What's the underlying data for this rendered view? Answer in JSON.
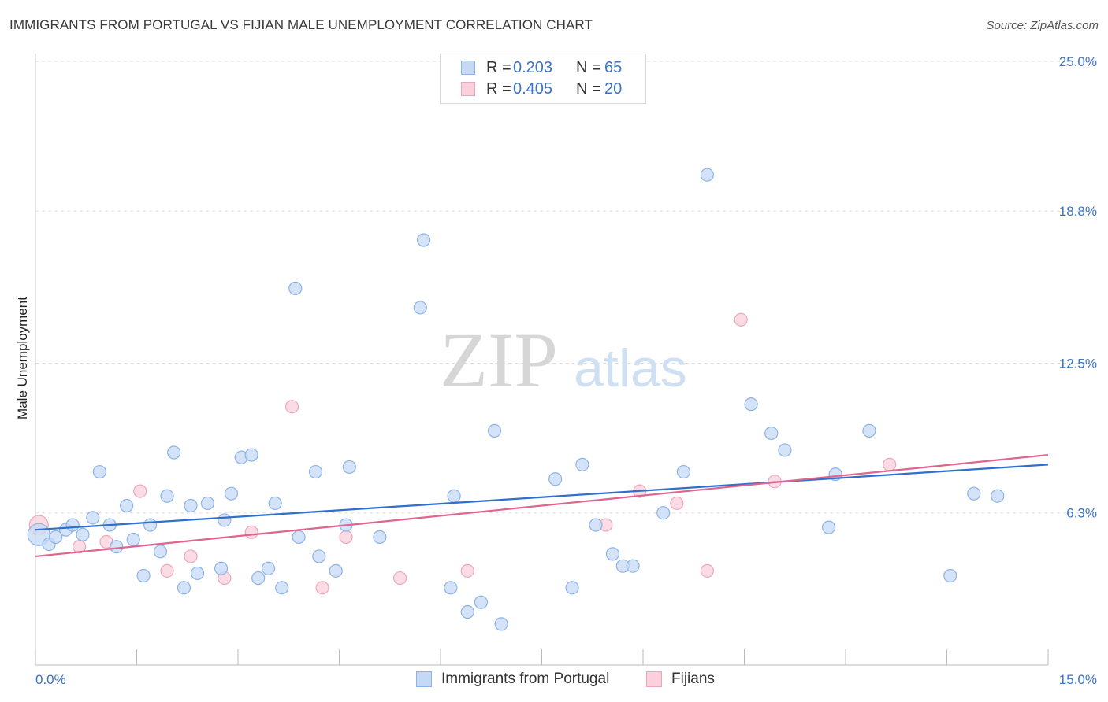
{
  "title": "IMMIGRANTS FROM PORTUGAL VS FIJIAN MALE UNEMPLOYMENT CORRELATION CHART",
  "source": "Source: ZipAtlas.com",
  "watermark": {
    "zip": "ZIP",
    "atlas": "atlas"
  },
  "legend_top": [
    {
      "r_label": "R =",
      "r_value": "0.203",
      "n_label": "N =",
      "n_value": "65"
    },
    {
      "r_label": "R =",
      "r_value": "0.405",
      "n_label": "N =",
      "n_value": "20"
    }
  ],
  "legend_bottom": [
    "Immigrants from Portugal",
    "Fijians"
  ],
  "colors": {
    "series1_fill": "#c5d9f4",
    "series1_stroke": "#8db3e6",
    "series1_line": "#2f6fcd",
    "series2_fill": "#f9d0dc",
    "series2_stroke": "#eda7bd",
    "series2_line": "#e0648f",
    "tick_text": "#3a73c7",
    "grid": "#dddddd"
  },
  "chart_data": {
    "type": "scatter",
    "title": "IMMIGRANTS FROM PORTUGAL VS FIJIAN MALE UNEMPLOYMENT CORRELATION CHART",
    "xlabel": "",
    "ylabel": "Male Unemployment",
    "xlim": [
      0,
      15
    ],
    "ylim": [
      0,
      25
    ],
    "x_tick_labels": [
      "0.0%",
      "15.0%"
    ],
    "y_ticks": [
      6.3,
      12.5,
      18.8,
      25.0
    ],
    "y_tick_labels": [
      "6.3%",
      "12.5%",
      "18.8%",
      "25.0%"
    ],
    "grid": true,
    "legend_position": "top-center",
    "series": [
      {
        "name": "Immigrants from Portugal",
        "r": 0.203,
        "n": 65,
        "trend": [
          [
            0,
            5.6
          ],
          [
            15,
            8.3
          ]
        ],
        "points": [
          [
            0.05,
            5.4
          ],
          [
            0.2,
            5.0
          ],
          [
            0.3,
            5.3
          ],
          [
            0.45,
            5.6
          ],
          [
            0.55,
            5.8
          ],
          [
            0.7,
            5.4
          ],
          [
            0.85,
            6.1
          ],
          [
            0.95,
            8.0
          ],
          [
            1.1,
            5.8
          ],
          [
            1.2,
            4.9
          ],
          [
            1.35,
            6.6
          ],
          [
            1.45,
            5.2
          ],
          [
            1.6,
            3.7
          ],
          [
            1.7,
            5.8
          ],
          [
            1.85,
            4.7
          ],
          [
            1.95,
            7.0
          ],
          [
            2.05,
            8.8
          ],
          [
            2.2,
            3.2
          ],
          [
            2.3,
            6.6
          ],
          [
            2.4,
            3.8
          ],
          [
            2.55,
            6.7
          ],
          [
            2.75,
            4.0
          ],
          [
            2.8,
            6.0
          ],
          [
            2.9,
            7.1
          ],
          [
            3.05,
            8.6
          ],
          [
            3.2,
            8.7
          ],
          [
            3.3,
            3.6
          ],
          [
            3.45,
            4.0
          ],
          [
            3.55,
            6.7
          ],
          [
            3.65,
            3.2
          ],
          [
            3.85,
            15.6
          ],
          [
            3.9,
            5.3
          ],
          [
            4.15,
            8.0
          ],
          [
            4.2,
            4.5
          ],
          [
            4.45,
            3.9
          ],
          [
            4.6,
            5.8
          ],
          [
            4.65,
            8.2
          ],
          [
            5.1,
            5.3
          ],
          [
            5.7,
            14.8
          ],
          [
            5.75,
            17.6
          ],
          [
            6.15,
            3.2
          ],
          [
            6.2,
            7.0
          ],
          [
            6.4,
            2.2
          ],
          [
            6.6,
            2.6
          ],
          [
            6.8,
            9.7
          ],
          [
            6.9,
            1.7
          ],
          [
            7.7,
            7.7
          ],
          [
            7.95,
            3.2
          ],
          [
            8.1,
            8.3
          ],
          [
            8.3,
            5.8
          ],
          [
            8.55,
            4.6
          ],
          [
            8.7,
            4.1
          ],
          [
            8.85,
            4.1
          ],
          [
            9.3,
            6.3
          ],
          [
            9.6,
            8.0
          ],
          [
            9.95,
            20.3
          ],
          [
            10.6,
            10.8
          ],
          [
            10.9,
            9.6
          ],
          [
            11.1,
            8.9
          ],
          [
            11.75,
            5.7
          ],
          [
            11.85,
            7.9
          ],
          [
            12.35,
            9.7
          ],
          [
            13.55,
            3.7
          ],
          [
            13.9,
            7.1
          ],
          [
            14.25,
            7.0
          ]
        ]
      },
      {
        "name": "Fijians",
        "r": 0.405,
        "n": 20,
        "trend": [
          [
            0,
            4.5
          ],
          [
            15,
            8.7
          ]
        ],
        "points": [
          [
            0.05,
            5.8
          ],
          [
            0.65,
            4.9
          ],
          [
            1.05,
            5.1
          ],
          [
            1.55,
            7.2
          ],
          [
            1.95,
            3.9
          ],
          [
            2.3,
            4.5
          ],
          [
            2.8,
            3.6
          ],
          [
            3.2,
            5.5
          ],
          [
            3.8,
            10.7
          ],
          [
            4.25,
            3.2
          ],
          [
            4.6,
            5.3
          ],
          [
            5.4,
            3.6
          ],
          [
            6.4,
            3.9
          ],
          [
            8.45,
            5.8
          ],
          [
            8.95,
            7.2
          ],
          [
            9.5,
            6.7
          ],
          [
            9.95,
            3.9
          ],
          [
            10.45,
            14.3
          ],
          [
            10.95,
            7.6
          ],
          [
            12.65,
            8.3
          ]
        ]
      }
    ]
  }
}
